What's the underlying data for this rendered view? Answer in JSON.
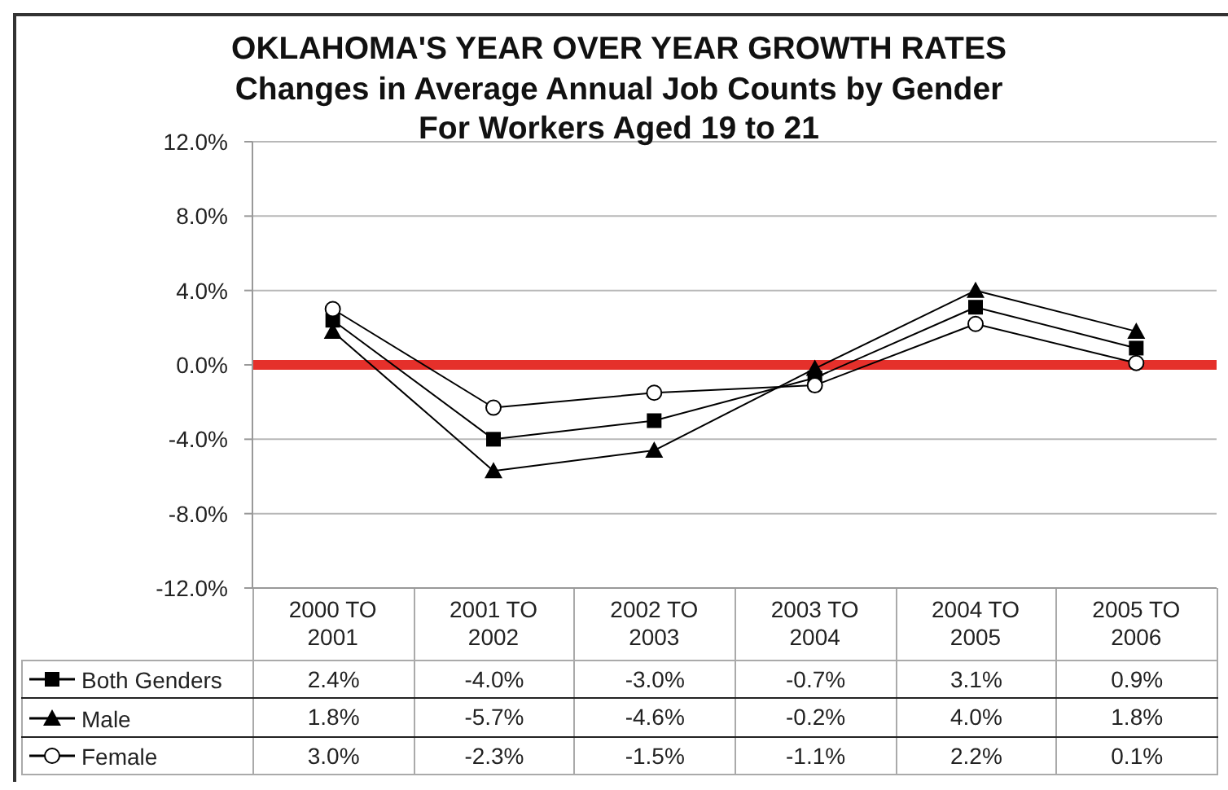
{
  "chart_data": {
    "type": "line",
    "title": "OKLAHOMA'S YEAR OVER YEAR GROWTH RATES",
    "subtitle": "Changes in Average Annual Job Counts by Gender\nFor Workers Aged 19 to 21",
    "categories": [
      "2000 TO 2001",
      "2001 TO 2002",
      "2002 TO 2003",
      "2003 TO 2004",
      "2004 TO 2005",
      "2005 TO 2006"
    ],
    "series": [
      {
        "name": "Both Genders",
        "color": "#000000",
        "marker": "square",
        "values": [
          2.4,
          -4.0,
          -3.0,
          -0.7,
          3.1,
          0.9
        ],
        "value_labels": [
          "2.4%",
          "-4.0%",
          "-3.0%",
          "-0.7%",
          "3.1%",
          "0.9%"
        ]
      },
      {
        "name": "Male",
        "color": "#000000",
        "marker": "triangle",
        "values": [
          1.8,
          -5.7,
          -4.6,
          -0.2,
          4.0,
          1.8
        ],
        "value_labels": [
          "1.8%",
          "-5.7%",
          "-4.6%",
          "-0.2%",
          "4.0%",
          "1.8%"
        ]
      },
      {
        "name": "Female",
        "color": "#000000",
        "marker": "circle",
        "values": [
          3.0,
          -2.3,
          -1.5,
          -1.1,
          2.2,
          0.1
        ],
        "value_labels": [
          "3.0%",
          "-2.3%",
          "-1.5%",
          "-1.1%",
          "2.2%",
          "0.1%"
        ]
      }
    ],
    "ylim": [
      -12,
      12
    ],
    "yticks": [
      {
        "value": -12,
        "label": "-12.0%"
      },
      {
        "value": -8,
        "label": "-8.0%"
      },
      {
        "value": -4,
        "label": "-4.0%"
      },
      {
        "value": 0,
        "label": "0.0%"
      },
      {
        "value": 4,
        "label": "4.0%"
      },
      {
        "value": 8,
        "label": "8.0%"
      },
      {
        "value": 12,
        "label": "12.0%"
      }
    ],
    "grid": "y",
    "legend": "bottom",
    "line_style": "solid",
    "ref_lines": [
      {
        "axis": "y",
        "value": 0,
        "color": "#e5302b"
      }
    ]
  }
}
